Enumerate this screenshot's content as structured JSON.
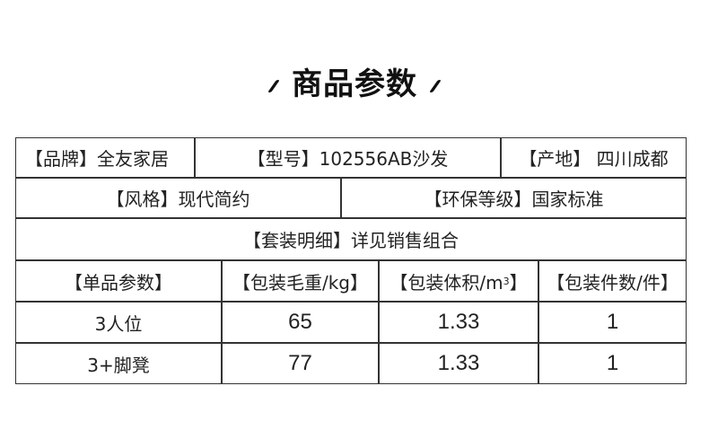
{
  "title": "商品参数",
  "info": {
    "brand": "【品牌】全友家居",
    "model": "【型号】102556AB沙发",
    "origin": "【产地】 四川成都",
    "style": "【风格】现代简约",
    "eco_grade": "【环保等级】国家标准",
    "package_detail": "【套装明细】详见销售组合"
  },
  "table": {
    "headers": [
      "【单品参数】",
      "【包装毛重/kg】",
      "【包装体积/m",
      "3",
      "】",
      "【包装件数/件】"
    ],
    "rows": [
      [
        "3人位",
        "65",
        "1.33",
        "1"
      ],
      [
        "3+脚凳",
        "77",
        "1.33",
        "1"
      ]
    ]
  }
}
